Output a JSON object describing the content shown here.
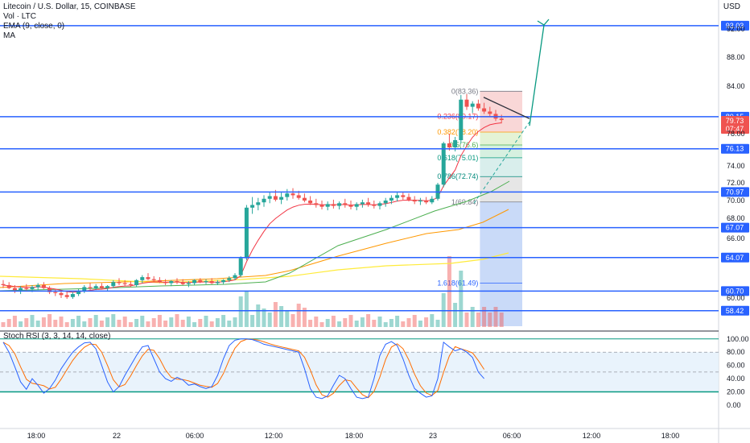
{
  "header": {
    "symbol": "Litecoin / U.S. Dollar, 15, COINBASE",
    "vol": "Vol · LTC",
    "ema": "EMA (9, close, 0)",
    "ma": "MA",
    "currency": "USD",
    "stoch_label": "Stoch RSI (3, 3, 14, 14, close)"
  },
  "colors": {
    "up": "#26a69a",
    "down": "#ef5350",
    "level": "#2962ff",
    "stoch_k": "#2962ff",
    "stoch_d": "#ff6d00",
    "stoch_band": "#e3f0fb",
    "ema": "#f23645",
    "ma_green": "#4caf50",
    "ma_orange": "#ff9800",
    "ma_yellow": "#ffeb3b"
  },
  "chart_data": {
    "type": "candlestick",
    "x_ticks": [
      "18:00",
      "22",
      "06:00",
      "12:00",
      "18:00",
      "23",
      "06:00",
      "12:00",
      "18:00"
    ],
    "y_ticks": [
      "92.00",
      "88.00",
      "84.00",
      "78.00",
      "74.00",
      "72.00",
      "70.00",
      "68.00",
      "66.00",
      "60.00"
    ],
    "ylim": [
      56,
      94
    ],
    "levels": [
      {
        "price": 93.03,
        "label": "93.03"
      },
      {
        "price": 80.15,
        "label": "80.15"
      },
      {
        "price": 76.13,
        "label": "76.13"
      },
      {
        "price": 70.97,
        "label": "70.97"
      },
      {
        "price": 67.07,
        "label": "67.07"
      },
      {
        "price": 64.07,
        "label": "64.07"
      },
      {
        "price": 60.7,
        "label": "60.70"
      },
      {
        "price": 58.42,
        "label": "58.42"
      }
    ],
    "current_price": {
      "label": "79.73",
      "countdown": "07:47"
    },
    "fib": [
      {
        "label": "0(83.36)",
        "price": 83.36
      },
      {
        "label": "0.236(80.17)",
        "price": 80.17
      },
      {
        "label": "0.382(78.20)",
        "price": 78.2
      },
      {
        "label": "0.5(76.6)",
        "price": 76.6
      },
      {
        "label": "0.618(75.01)",
        "price": 75.01
      },
      {
        "label": "0.786(72.74)",
        "price": 72.74
      },
      {
        "label": "1(69.84)",
        "price": 69.84
      },
      {
        "label": "1.618(61.49)",
        "price": 61.49
      }
    ],
    "candles": [
      [
        61.4,
        61.8,
        61.0,
        61.3
      ],
      [
        61.3,
        61.6,
        60.9,
        61.0
      ],
      [
        61.0,
        61.3,
        60.5,
        60.8
      ],
      [
        60.8,
        61.2,
        60.4,
        61.0
      ],
      [
        61.0,
        61.4,
        60.7,
        60.9
      ],
      [
        60.9,
        61.3,
        60.6,
        61.1
      ],
      [
        61.1,
        61.5,
        60.8,
        61.3
      ],
      [
        61.3,
        61.6,
        60.9,
        61.0
      ],
      [
        61.0,
        61.2,
        60.4,
        60.6
      ],
      [
        60.6,
        60.9,
        60.2,
        60.5
      ],
      [
        60.5,
        60.8,
        60.0,
        60.3
      ],
      [
        60.3,
        60.7,
        59.9,
        60.1
      ],
      [
        60.1,
        60.6,
        59.9,
        60.4
      ],
      [
        60.4,
        60.9,
        60.2,
        60.7
      ],
      [
        60.7,
        61.3,
        60.5,
        61.1
      ],
      [
        61.1,
        61.5,
        60.8,
        61.0
      ],
      [
        61.0,
        61.4,
        60.8,
        61.2
      ],
      [
        61.2,
        61.5,
        60.9,
        61.0
      ],
      [
        61.0,
        61.3,
        60.7,
        61.2
      ],
      [
        61.2,
        61.8,
        61.0,
        61.6
      ],
      [
        61.6,
        62.0,
        61.3,
        61.5
      ],
      [
        61.5,
        61.8,
        61.2,
        61.4
      ],
      [
        61.4,
        61.7,
        61.1,
        61.3
      ],
      [
        61.3,
        61.9,
        61.1,
        61.8
      ],
      [
        61.8,
        62.3,
        61.5,
        62.1
      ],
      [
        62.1,
        62.5,
        61.8,
        61.9
      ],
      [
        61.9,
        62.2,
        61.6,
        61.8
      ],
      [
        61.8,
        62.1,
        61.5,
        61.6
      ],
      [
        61.6,
        61.9,
        61.3,
        61.5
      ],
      [
        61.5,
        61.8,
        61.2,
        61.7
      ],
      [
        61.7,
        62.0,
        61.4,
        61.6
      ],
      [
        61.6,
        61.9,
        61.3,
        61.4
      ],
      [
        61.4,
        61.7,
        61.1,
        61.5
      ],
      [
        61.5,
        61.9,
        61.3,
        61.8
      ],
      [
        61.8,
        62.0,
        61.5,
        61.6
      ],
      [
        61.6,
        61.9,
        61.4,
        61.7
      ],
      [
        61.7,
        62.0,
        61.4,
        61.5
      ],
      [
        61.5,
        61.8,
        61.3,
        61.6
      ],
      [
        61.6,
        61.9,
        61.4,
        61.8
      ],
      [
        61.8,
        62.2,
        61.6,
        62.0
      ],
      [
        62.0,
        62.5,
        61.8,
        62.3
      ],
      [
        62.3,
        64.2,
        62.1,
        64.0
      ],
      [
        64.0,
        69.5,
        63.8,
        69.2
      ],
      [
        69.2,
        70.4,
        68.5,
        69.5
      ],
      [
        69.5,
        70.3,
        68.9,
        69.8
      ],
      [
        69.8,
        70.6,
        69.3,
        70.2
      ],
      [
        70.2,
        71.0,
        69.7,
        70.5
      ],
      [
        70.5,
        71.2,
        69.9,
        70.1
      ],
      [
        70.1,
        70.9,
        69.6,
        70.4
      ],
      [
        70.4,
        71.3,
        70.0,
        70.8
      ],
      [
        70.8,
        71.4,
        70.2,
        70.6
      ],
      [
        70.6,
        71.1,
        70.1,
        70.3
      ],
      [
        70.3,
        70.8,
        69.8,
        70.0
      ],
      [
        70.0,
        70.5,
        69.5,
        69.7
      ],
      [
        69.7,
        70.2,
        69.2,
        69.5
      ],
      [
        69.5,
        70.0,
        69.0,
        69.3
      ],
      [
        69.3,
        69.9,
        68.9,
        69.6
      ],
      [
        69.6,
        70.1,
        69.1,
        69.4
      ],
      [
        69.4,
        69.9,
        69.0,
        69.7
      ],
      [
        69.7,
        70.2,
        69.2,
        69.5
      ],
      [
        69.5,
        70.0,
        69.0,
        69.3
      ],
      [
        69.3,
        69.8,
        68.9,
        69.6
      ],
      [
        69.6,
        70.1,
        69.2,
        69.8
      ],
      [
        69.8,
        70.3,
        69.3,
        69.5
      ],
      [
        69.5,
        70.0,
        69.1,
        69.4
      ],
      [
        69.4,
        69.9,
        69.0,
        69.7
      ],
      [
        69.7,
        70.3,
        69.3,
        70.0
      ],
      [
        70.0,
        70.6,
        69.6,
        70.3
      ],
      [
        70.3,
        70.9,
        69.9,
        70.6
      ],
      [
        70.6,
        71.0,
        70.1,
        70.4
      ],
      [
        70.4,
        70.8,
        69.9,
        70.1
      ],
      [
        70.1,
        70.5,
        69.6,
        69.9
      ],
      [
        69.9,
        70.3,
        69.5,
        70.0
      ],
      [
        70.0,
        70.4,
        69.6,
        69.8
      ],
      [
        69.8,
        70.5,
        69.6,
        70.2
      ],
      [
        70.2,
        72.0,
        70.0,
        71.8
      ],
      [
        71.8,
        77.0,
        71.5,
        76.8
      ],
      [
        76.8,
        78.0,
        75.9,
        76.3
      ],
      [
        76.3,
        77.6,
        75.8,
        77.2
      ],
      [
        77.2,
        82.9,
        76.8,
        82.3
      ],
      [
        82.3,
        83.0,
        81.0,
        81.4
      ],
      [
        81.4,
        82.1,
        80.6,
        81.8
      ],
      [
        81.8,
        82.3,
        80.9,
        81.2
      ],
      [
        81.2,
        81.9,
        80.5,
        80.8
      ],
      [
        80.8,
        81.4,
        80.2,
        80.5
      ],
      [
        80.5,
        81.0,
        79.6,
        79.9
      ],
      [
        79.9,
        80.4,
        79.3,
        79.73
      ]
    ],
    "stoch_k": [
      95,
      80,
      58,
      35,
      24,
      40,
      30,
      18,
      25,
      38,
      55,
      68,
      80,
      88,
      94,
      95,
      85,
      60,
      35,
      20,
      28,
      45,
      60,
      75,
      88,
      90,
      70,
      50,
      40,
      36,
      42,
      38,
      30,
      32,
      28,
      25,
      28,
      45,
      70,
      90,
      98,
      100,
      100,
      99,
      96,
      92,
      90,
      88,
      86,
      84,
      82,
      80,
      55,
      25,
      12,
      10,
      14,
      30,
      45,
      40,
      25,
      12,
      10,
      12,
      40,
      75,
      92,
      96,
      90,
      70,
      45,
      25,
      18,
      12,
      14,
      40,
      95,
      88,
      82,
      85,
      80,
      72,
      50,
      40
    ]
  }
}
